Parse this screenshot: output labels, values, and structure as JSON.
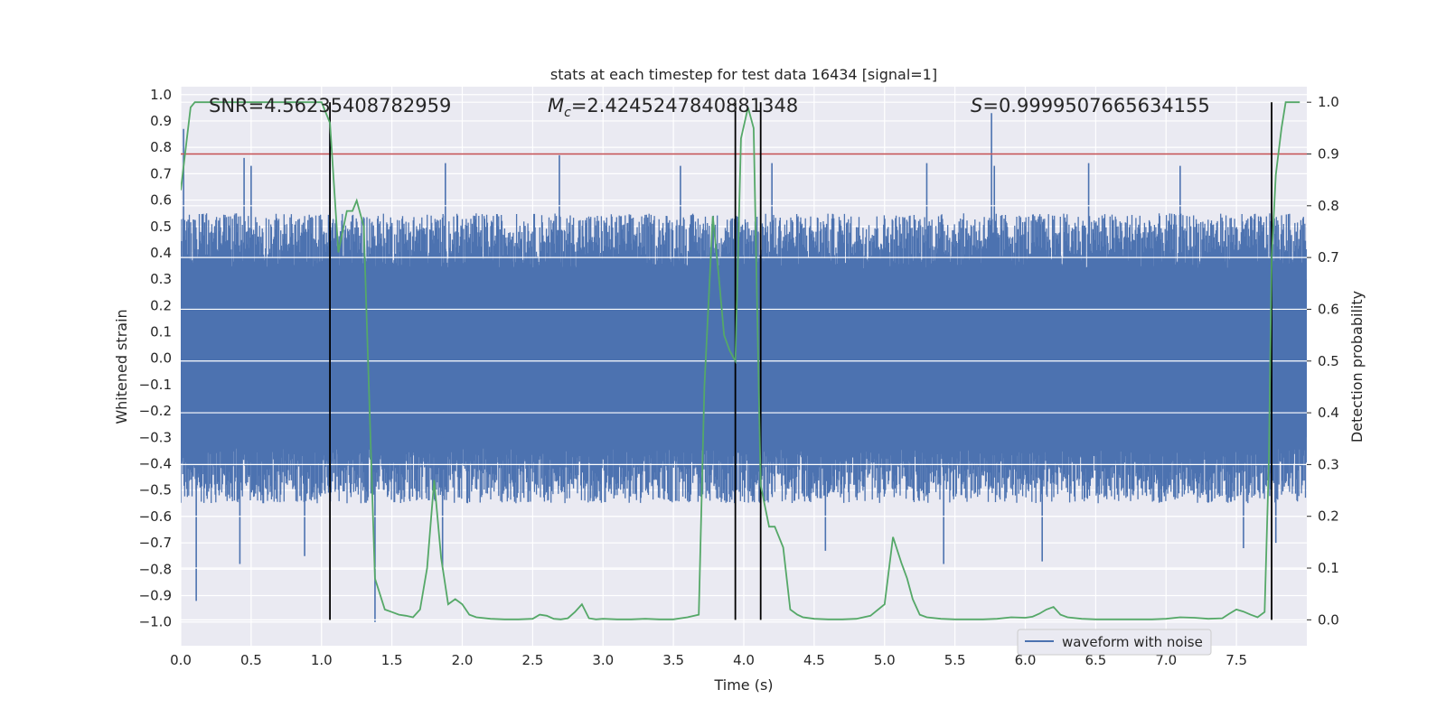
{
  "chart_data": {
    "type": "line",
    "title": "stats at each timestep for test data 16434 [signal=1]",
    "xlabel": "Time (s)",
    "ylabel": "Whitened strain",
    "ylabel_right": "Detection probability",
    "xlim": [
      0.0,
      8.0
    ],
    "ylim": [
      -1.09,
      1.03
    ],
    "ylim_right": [
      -0.05,
      1.03
    ],
    "x_ticks": [
      "0.0",
      "0.5",
      "1.0",
      "1.5",
      "2.0",
      "2.5",
      "3.0",
      "3.5",
      "4.0",
      "4.5",
      "5.0",
      "5.5",
      "6.0",
      "6.5",
      "7.0",
      "7.5"
    ],
    "y_ticks": [
      "1.0",
      "0.9",
      "0.8",
      "0.7",
      "0.6",
      "0.5",
      "0.4",
      "0.3",
      "0.2",
      "0.1",
      "0.0",
      "−0.1",
      "−0.2",
      "−0.3",
      "−0.4",
      "−0.5",
      "−0.6",
      "−0.7",
      "−0.8",
      "−0.9",
      "−1.0"
    ],
    "y_right_ticks": [
      "1.0",
      "0.9",
      "0.8",
      "0.7",
      "0.6",
      "0.5",
      "0.4",
      "0.3",
      "0.2",
      "0.1",
      "0.0"
    ],
    "grid": true,
    "annotations": {
      "snr": "SNR=4.56235408782959",
      "mc_symbol": "M",
      "mc_sub": "c",
      "mc_value": "=2.4245247840881348",
      "s_symbol": "S",
      "s_value": "=0.9999507665634155"
    },
    "threshold": {
      "y": 0.9,
      "color": "#c44e52"
    },
    "vlines": [
      1.06,
      3.94,
      4.12,
      7.75
    ],
    "series": [
      {
        "name": "waveform with noise",
        "axis": "left",
        "color": "#4c72b0",
        "envelope": {
          "typical_max": 0.55,
          "typical_min": -0.55,
          "peak_max": 0.93,
          "peak_min": -1.0
        },
        "spikes": [
          {
            "x": 0.02,
            "y": 0.87
          },
          {
            "x": 0.11,
            "y": -0.92
          },
          {
            "x": 0.42,
            "y": -0.78
          },
          {
            "x": 0.45,
            "y": 0.76
          },
          {
            "x": 0.5,
            "y": 0.73
          },
          {
            "x": 0.88,
            "y": -0.75
          },
          {
            "x": 1.06,
            "y": 0.85
          },
          {
            "x": 1.38,
            "y": -1.0
          },
          {
            "x": 1.86,
            "y": -0.8
          },
          {
            "x": 1.88,
            "y": 0.74
          },
          {
            "x": 2.69,
            "y": 0.77
          },
          {
            "x": 3.55,
            "y": 0.73
          },
          {
            "x": 4.2,
            "y": 0.74
          },
          {
            "x": 4.58,
            "y": -0.73
          },
          {
            "x": 5.3,
            "y": 0.74
          },
          {
            "x": 5.42,
            "y": -0.78
          },
          {
            "x": 5.76,
            "y": 0.93
          },
          {
            "x": 5.78,
            "y": 0.73
          },
          {
            "x": 6.12,
            "y": -0.77
          },
          {
            "x": 6.45,
            "y": 0.74
          },
          {
            "x": 7.1,
            "y": 0.73
          },
          {
            "x": 7.55,
            "y": -0.72
          },
          {
            "x": 7.78,
            "y": -0.7
          }
        ]
      },
      {
        "name": "Detection probability",
        "axis": "right",
        "color": "#55a868",
        "x": [
          0.0,
          0.07,
          0.1,
          0.2,
          0.3,
          0.4,
          0.5,
          0.6,
          0.7,
          0.8,
          0.9,
          1.0,
          1.06,
          1.12,
          1.18,
          1.22,
          1.25,
          1.3,
          1.38,
          1.45,
          1.5,
          1.55,
          1.6,
          1.65,
          1.7,
          1.75,
          1.8,
          1.85,
          1.9,
          1.95,
          2.0,
          2.05,
          2.1,
          2.2,
          2.3,
          2.4,
          2.5,
          2.55,
          2.6,
          2.65,
          2.7,
          2.75,
          2.8,
          2.85,
          2.9,
          2.95,
          3.0,
          3.1,
          3.2,
          3.3,
          3.4,
          3.5,
          3.6,
          3.68,
          3.72,
          3.78,
          3.82,
          3.86,
          3.9,
          3.94,
          3.98,
          4.03,
          4.07,
          4.12,
          4.18,
          4.22,
          4.28,
          4.33,
          4.38,
          4.42,
          4.5,
          4.6,
          4.7,
          4.8,
          4.9,
          5.0,
          5.06,
          5.12,
          5.16,
          5.2,
          5.25,
          5.3,
          5.4,
          5.5,
          5.6,
          5.7,
          5.8,
          5.9,
          6.0,
          6.05,
          6.1,
          6.15,
          6.2,
          6.25,
          6.3,
          6.4,
          6.5,
          6.6,
          6.7,
          6.8,
          6.9,
          7.0,
          7.1,
          7.2,
          7.3,
          7.4,
          7.45,
          7.5,
          7.55,
          7.6,
          7.65,
          7.7,
          7.73,
          7.75,
          7.78,
          7.82,
          7.85,
          7.9,
          7.95
        ],
        "y": [
          0.83,
          0.99,
          1.0,
          1.0,
          1.0,
          1.0,
          1.0,
          1.0,
          1.0,
          1.0,
          1.0,
          1.0,
          0.96,
          0.71,
          0.79,
          0.79,
          0.81,
          0.76,
          0.08,
          0.02,
          0.015,
          0.01,
          0.008,
          0.005,
          0.02,
          0.1,
          0.27,
          0.12,
          0.03,
          0.04,
          0.03,
          0.01,
          0.005,
          0.002,
          0.001,
          0.001,
          0.002,
          0.01,
          0.008,
          0.002,
          0.001,
          0.003,
          0.015,
          0.03,
          0.003,
          0.001,
          0.002,
          0.001,
          0.001,
          0.002,
          0.001,
          0.001,
          0.005,
          0.01,
          0.45,
          0.78,
          0.67,
          0.55,
          0.52,
          0.5,
          0.93,
          0.99,
          0.95,
          0.26,
          0.18,
          0.18,
          0.14,
          0.02,
          0.01,
          0.005,
          0.002,
          0.001,
          0.001,
          0.002,
          0.008,
          0.03,
          0.16,
          0.11,
          0.08,
          0.04,
          0.01,
          0.005,
          0.002,
          0.001,
          0.001,
          0.001,
          0.002,
          0.005,
          0.004,
          0.006,
          0.012,
          0.02,
          0.025,
          0.01,
          0.005,
          0.002,
          0.001,
          0.001,
          0.001,
          0.001,
          0.001,
          0.002,
          0.005,
          0.004,
          0.002,
          0.003,
          0.012,
          0.02,
          0.016,
          0.01,
          0.005,
          0.015,
          0.3,
          0.7,
          0.86,
          0.95,
          1.0,
          1.0,
          1.0
        ]
      }
    ],
    "legend": {
      "label": "waveform with noise",
      "placement": "lower right"
    }
  }
}
